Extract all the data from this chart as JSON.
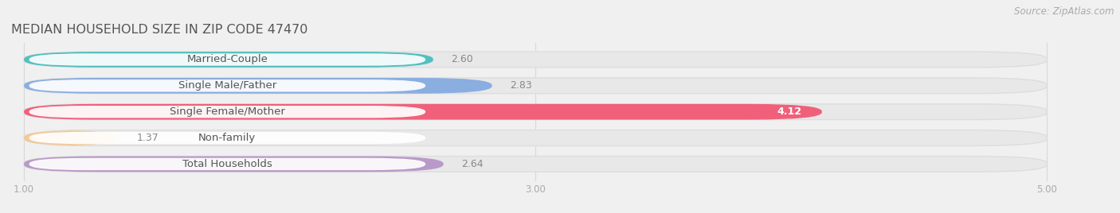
{
  "title": "MEDIAN HOUSEHOLD SIZE IN ZIP CODE 47470",
  "source": "Source: ZipAtlas.com",
  "categories": [
    "Married-Couple",
    "Single Male/Father",
    "Single Female/Mother",
    "Non-family",
    "Total Households"
  ],
  "values": [
    2.6,
    2.83,
    4.12,
    1.37,
    2.64
  ],
  "bar_colors": [
    "#52bfbf",
    "#8aaee0",
    "#f0607a",
    "#f5c898",
    "#b89ac8"
  ],
  "xlim": [
    1.0,
    5.0
  ],
  "xticks": [
    1.0,
    3.0,
    5.0
  ],
  "xtick_labels": [
    "1.00",
    "3.00",
    "5.00"
  ],
  "background_color": "#f0f0f0",
  "plot_bg_color": "#f0f0f0",
  "bar_bg_color": "#e8e8e8",
  "title_fontsize": 11.5,
  "label_fontsize": 9.5,
  "value_fontsize": 9,
  "source_fontsize": 8.5,
  "bar_height": 0.6,
  "title_color": "#555555",
  "label_color": "#555555",
  "value_color_outside": "#888888",
  "value_color_inside": "#ffffff",
  "source_color": "#aaaaaa",
  "grid_color": "#d8d8d8",
  "tick_color": "#aaaaaa"
}
